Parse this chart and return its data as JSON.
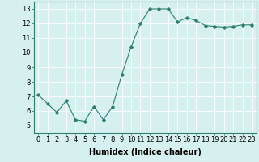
{
  "x": [
    0,
    1,
    2,
    3,
    4,
    5,
    6,
    7,
    8,
    9,
    10,
    11,
    12,
    13,
    14,
    15,
    16,
    17,
    18,
    19,
    20,
    21,
    22,
    23
  ],
  "y": [
    7.1,
    6.5,
    5.9,
    6.7,
    5.4,
    5.3,
    6.3,
    5.4,
    6.3,
    8.5,
    10.4,
    12.0,
    13.0,
    13.0,
    13.0,
    12.1,
    12.4,
    12.2,
    11.85,
    11.8,
    11.75,
    11.8,
    11.9,
    11.9
  ],
  "line_color": "#2e7d6e",
  "marker": "D",
  "marker_size": 1.8,
  "line_width": 0.8,
  "background_color": "#d6f0ef",
  "grid_color": "#ffffff",
  "xlabel": "Humidex (Indice chaleur)",
  "xlabel_fontsize": 7,
  "xlim": [
    -0.5,
    23.5
  ],
  "ylim": [
    4.5,
    13.5
  ],
  "yticks": [
    5,
    6,
    7,
    8,
    9,
    10,
    11,
    12,
    13
  ],
  "xticks": [
    0,
    1,
    2,
    3,
    4,
    5,
    6,
    7,
    8,
    9,
    10,
    11,
    12,
    13,
    14,
    15,
    16,
    17,
    18,
    19,
    20,
    21,
    22,
    23
  ],
  "tick_fontsize": 6,
  "spine_color": "#2e7d6e"
}
